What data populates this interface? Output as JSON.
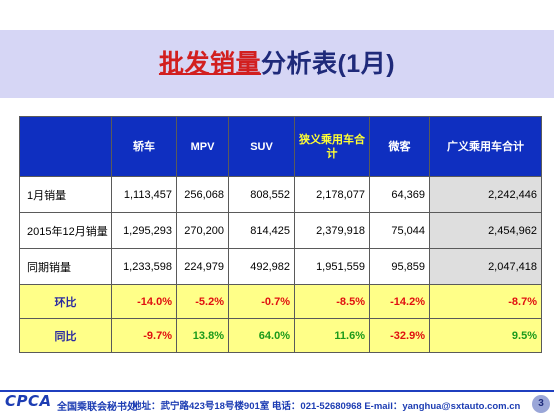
{
  "title": {
    "highlight": "批发销量",
    "rest": "分析表(1月)"
  },
  "table": {
    "headers": [
      "",
      "轿车",
      "MPV",
      "SUV",
      "狭义乘用车合计",
      "微客",
      "广义乘用车合计"
    ],
    "rows": [
      {
        "label": "1月销量",
        "values": [
          "1,113,457",
          "256,068",
          "808,552",
          "2,178,077",
          "64,369",
          "2,242,446"
        ]
      },
      {
        "label": "2015年12月销量",
        "values": [
          "1,295,293",
          "270,200",
          "814,425",
          "2,379,918",
          "75,044",
          "2,454,962"
        ]
      },
      {
        "label": "同期销量",
        "values": [
          "1,233,598",
          "224,979",
          "492,982",
          "1,951,559",
          "95,859",
          "2,047,418"
        ]
      }
    ],
    "pct_rows": [
      {
        "label": "环比",
        "values": [
          "-14.0%",
          "-5.2%",
          "-0.7%",
          "-8.5%",
          "-14.2%",
          "-8.7%"
        ]
      },
      {
        "label": "同比",
        "values": [
          "-9.7%",
          "13.8%",
          "64.0%",
          "11.6%",
          "-32.9%",
          "9.5%"
        ]
      }
    ]
  },
  "footer": {
    "logo": "CPCA",
    "org": "全国乘联会秘书处",
    "contact": "地址：武宁路423号18号楼901室  电话：021-52680968  E-mail：yanghua@sxtauto.com.cn",
    "page": "3"
  },
  "colors": {
    "header_bg": "#0f2fc0",
    "pct_bg": "#ffff88",
    "negative": "#e01010",
    "positive": "#1b9a1b",
    "title_band": "#d6d6f5"
  }
}
